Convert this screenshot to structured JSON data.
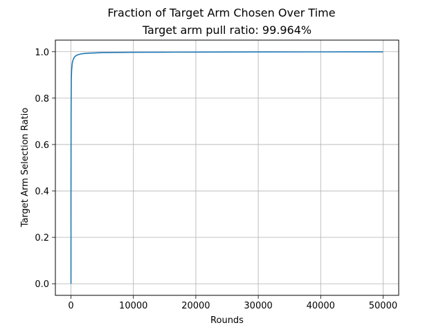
{
  "chart_data": {
    "type": "line",
    "suptitle": "Fraction of Target Arm Chosen Over Time",
    "title": "Target arm pull ratio: 99.964%",
    "xlabel": "Rounds",
    "ylabel": "Target Arm Selection Ratio",
    "xlim": [
      -2500,
      52500
    ],
    "ylim": [
      -0.05,
      1.05
    ],
    "xticks": [
      0,
      10000,
      20000,
      30000,
      40000,
      50000
    ],
    "xtick_labels": [
      "0",
      "10000",
      "20000",
      "30000",
      "40000",
      "50000"
    ],
    "yticks": [
      0.0,
      0.2,
      0.4,
      0.6,
      0.8,
      1.0
    ],
    "ytick_labels": [
      "0.0",
      "0.2",
      "0.4",
      "0.6",
      "0.8",
      "1.0"
    ],
    "grid": true,
    "line_color": "#1f77b4",
    "series": [
      {
        "x": [
          1,
          2,
          3,
          4,
          5,
          10,
          20,
          50,
          100,
          200,
          300,
          500,
          700,
          1000,
          1500,
          2000,
          3000,
          5000,
          7500,
          10000,
          15000,
          20000,
          30000,
          40000,
          50000
        ],
        "values": [
          0.0,
          0.5,
          0.47,
          0.5,
          0.4,
          0.6,
          0.75,
          0.88,
          0.92,
          0.95,
          0.962,
          0.975,
          0.981,
          0.986,
          0.99,
          0.992,
          0.994,
          0.996,
          0.997,
          0.9975,
          0.998,
          0.9985,
          0.999,
          0.9993,
          0.99964
        ]
      }
    ]
  }
}
